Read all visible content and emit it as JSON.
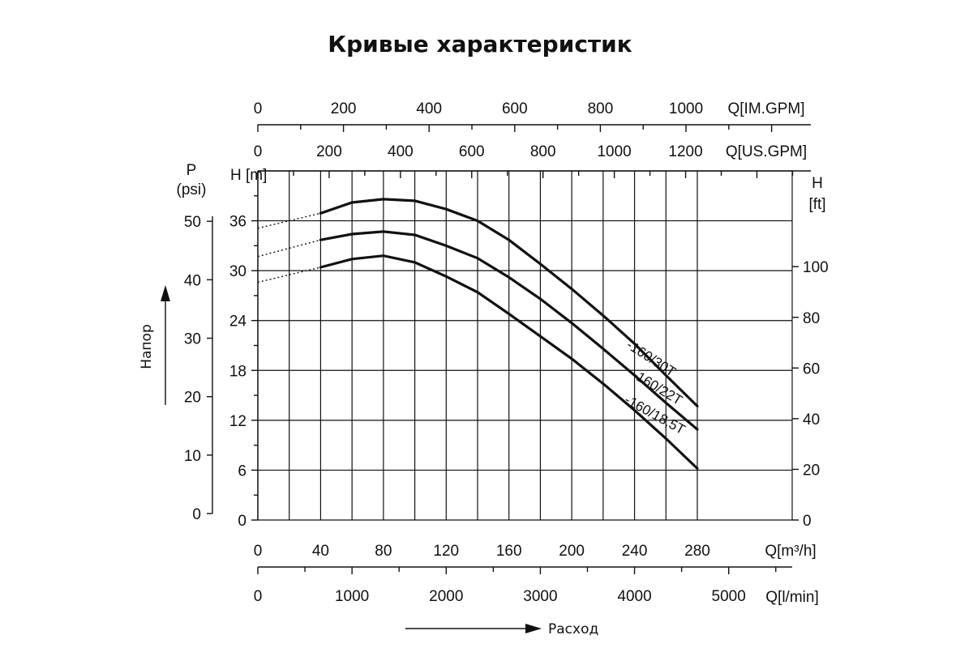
{
  "title": "Кривые характеристик",
  "chart_data": {
    "type": "line",
    "title": "Кривые характеристик",
    "xlabel": "Расход",
    "ylabel": "Напор",
    "grid": true,
    "x": {
      "unit_label": "Q[m³/h]",
      "range": [
        0,
        280
      ],
      "ticks": [
        "0",
        "40",
        "80",
        "120",
        "160",
        "200",
        "240",
        "280"
      ]
    },
    "y": {
      "unit_label": "H [m]",
      "range": [
        0,
        42
      ],
      "ticks": [
        "0",
        "6",
        "12",
        "18",
        "24",
        "30",
        "36"
      ]
    },
    "secondary_axes": {
      "im_gpm": {
        "label": "Q[IM.GPM]",
        "ticks": [
          "0",
          "200",
          "400",
          "600",
          "800",
          "1000"
        ],
        "values": [
          0,
          200,
          400,
          600,
          800,
          1000
        ],
        "per_m3h": 3.666
      },
      "us_gpm": {
        "label": "Q[US.GPM]",
        "ticks": [
          "0",
          "200",
          "400",
          "600",
          "800",
          "1000",
          "1200"
        ],
        "values": [
          0,
          200,
          400,
          600,
          800,
          1000,
          1200
        ],
        "per_m3h": 4.403
      },
      "lmin": {
        "label": "Q[l/min]",
        "ticks": [
          "0",
          "1000",
          "2000",
          "3000",
          "4000",
          "5000"
        ],
        "values": [
          0,
          1000,
          2000,
          3000,
          4000,
          5000
        ],
        "per_m3h": 16.667
      },
      "psi": {
        "label_1": "P",
        "label_2": "(psi)",
        "ticks": [
          "0",
          "10",
          "20",
          "30",
          "40",
          "50"
        ],
        "values": [
          0,
          10,
          20,
          30,
          40,
          50
        ],
        "per_m": 1.4223
      },
      "ft": {
        "label_1": "H",
        "label_2": "[ft]",
        "ticks": [
          "0",
          "20",
          "40",
          "60",
          "80",
          "100"
        ],
        "values": [
          0,
          20,
          40,
          60,
          80,
          100
        ],
        "per_m": 3.2808
      }
    },
    "series": [
      {
        "name": "-160/30T",
        "dotted": [
          [
            0,
            35.1
          ],
          [
            40,
            36.9
          ]
        ],
        "values": [
          [
            40,
            36.9
          ],
          [
            60,
            38.2
          ],
          [
            80,
            38.6
          ],
          [
            100,
            38.4
          ],
          [
            120,
            37.4
          ],
          [
            140,
            36.0
          ],
          [
            160,
            33.7
          ],
          [
            180,
            30.8
          ],
          [
            200,
            27.8
          ],
          [
            220,
            24.6
          ],
          [
            240,
            21.2
          ],
          [
            260,
            17.4
          ],
          [
            280,
            13.7
          ]
        ]
      },
      {
        "name": "-160/22T",
        "dotted": [
          [
            0,
            31.7
          ],
          [
            40,
            33.7
          ]
        ],
        "values": [
          [
            40,
            33.7
          ],
          [
            60,
            34.4
          ],
          [
            80,
            34.7
          ],
          [
            100,
            34.3
          ],
          [
            120,
            33.0
          ],
          [
            140,
            31.5
          ],
          [
            160,
            29.2
          ],
          [
            180,
            26.6
          ],
          [
            200,
            23.7
          ],
          [
            220,
            20.6
          ],
          [
            240,
            17.4
          ],
          [
            260,
            14.1
          ],
          [
            280,
            10.9
          ]
        ]
      },
      {
        "name": "-160/18,5T",
        "dotted": [
          [
            0,
            28.6
          ],
          [
            40,
            30.4
          ]
        ],
        "values": [
          [
            40,
            30.4
          ],
          [
            60,
            31.4
          ],
          [
            80,
            31.8
          ],
          [
            100,
            31.0
          ],
          [
            120,
            29.3
          ],
          [
            140,
            27.4
          ],
          [
            160,
            24.8
          ],
          [
            180,
            22.1
          ],
          [
            200,
            19.4
          ],
          [
            220,
            16.4
          ],
          [
            240,
            13.2
          ],
          [
            260,
            9.8
          ],
          [
            280,
            6.2
          ]
        ]
      }
    ]
  }
}
